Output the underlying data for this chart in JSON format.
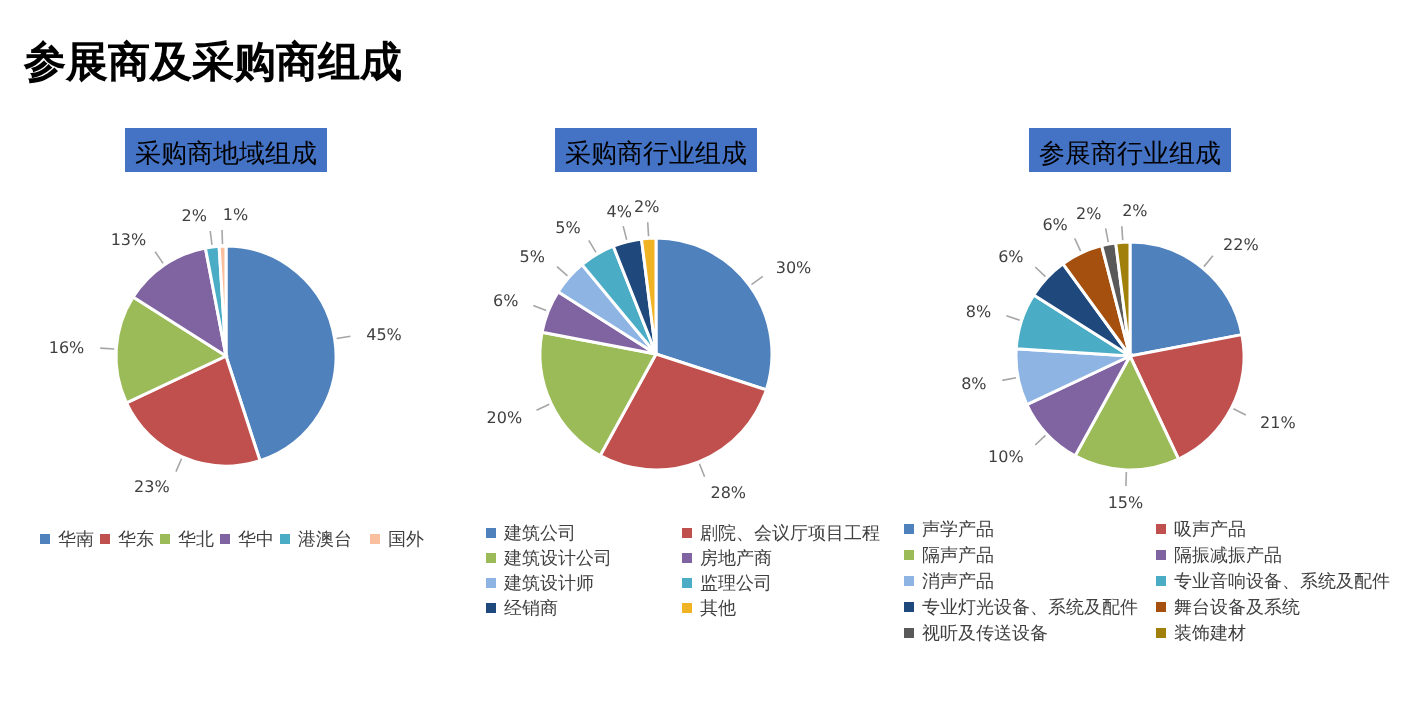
{
  "chart_data": [
    {
      "type": "pie",
      "title": "采购商地域组成",
      "annotations": [
        "参展商及采购商组成"
      ],
      "categories": [
        "华南",
        "华东",
        "华北",
        "华中",
        "港澳台",
        "国外"
      ],
      "values": [
        45,
        23,
        16,
        13,
        2,
        1
      ],
      "colors": [
        "#4f81bd",
        "#c0504d",
        "#9bbb59",
        "#8064a2",
        "#4bacc6",
        "#f9bf9f"
      ],
      "value_labels": [
        "45%",
        "23%",
        "16%",
        "13%",
        "2%",
        "1%"
      ],
      "legend": "bottom"
    },
    {
      "type": "pie",
      "title": "采购商行业组成",
      "categories": [
        "建筑公司",
        "剧院、会议厅项目工程",
        "建筑设计公司",
        "房地产商",
        "建筑设计师",
        "监理公司",
        "经销商",
        "其他"
      ],
      "values": [
        30,
        28,
        20,
        6,
        5,
        5,
        4,
        2
      ],
      "colors": [
        "#4f81bd",
        "#c0504d",
        "#9bbb59",
        "#8064a2",
        "#8eb4e3",
        "#4bacc6",
        "#1f497d",
        "#f0b323"
      ],
      "value_labels": [
        "30%",
        "28%",
        "20%",
        "6%",
        "5%",
        "5%",
        "4%",
        "2%"
      ],
      "legend": "bottom"
    },
    {
      "type": "pie",
      "title": "参展商行业组成",
      "categories": [
        "声学产品",
        "吸声产品",
        "隔声产品",
        "隔振减振产品",
        "消声产品",
        "专业音响设备、系统及配件",
        "专业灯光设备、系统及配件",
        "舞台设备及系统",
        "视听及传送设备",
        "装饰建材"
      ],
      "values": [
        22,
        21,
        15,
        10,
        8,
        8,
        6,
        6,
        2,
        2
      ],
      "colors": [
        "#4f81bd",
        "#c0504d",
        "#9bbb59",
        "#8064a2",
        "#8eb4e3",
        "#4bacc6",
        "#1f497d",
        "#a5500f",
        "#595959",
        "#a0800a"
      ],
      "value_labels": [
        "22%",
        "21%",
        "15%",
        "10%",
        "8%",
        "8%",
        "6%",
        "6%",
        "2%",
        "2%"
      ],
      "legend": "bottom"
    }
  ]
}
